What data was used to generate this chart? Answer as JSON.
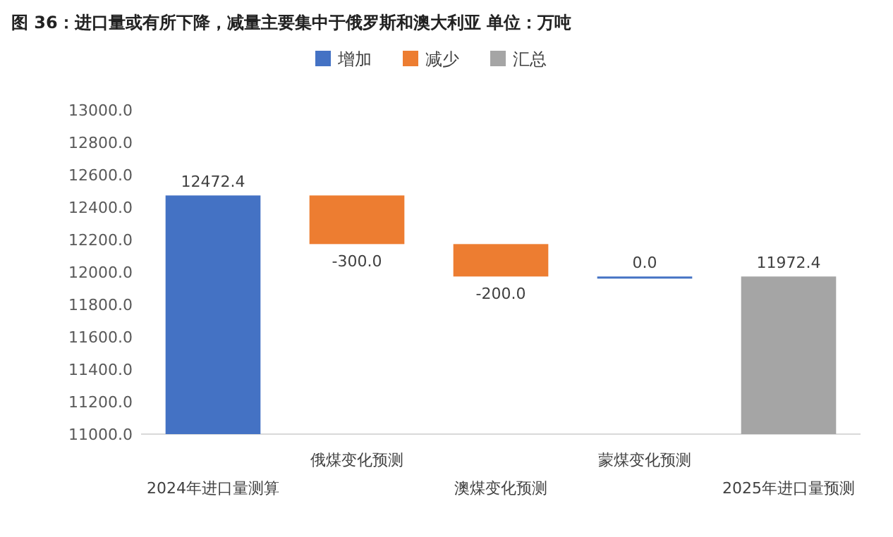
{
  "chart_data": {
    "type": "bar",
    "title": "图 36：进口量或有所下降，减量主要集中于俄罗斯和澳大利亚 单位：万吨",
    "categories": [
      "2024年进口量测算",
      "俄煤变化预测",
      "澳煤变化预测",
      "蒙煤变化预测",
      "2025年进口量预测"
    ],
    "series": [
      {
        "name": "增加",
        "color": "#4472c4",
        "values": [
          12472.4,
          null,
          null,
          0.0,
          null
        ],
        "base": [
          null,
          null,
          null,
          11972.4,
          null
        ],
        "value_labels": [
          "12472.4",
          null,
          null,
          "0.0",
          null
        ]
      },
      {
        "name": "减少",
        "color": "#ed7d31",
        "values": [
          null,
          -300.0,
          -200.0,
          null,
          null
        ],
        "base": [
          null,
          12472.4,
          12172.4,
          null,
          null
        ],
        "value_labels": [
          null,
          "-300.0",
          "-200.0",
          null,
          null
        ]
      },
      {
        "name": "汇总",
        "color": "#a5a5a5",
        "values": [
          null,
          null,
          null,
          null,
          11972.4
        ],
        "value_labels": [
          null,
          null,
          null,
          null,
          "11972.4"
        ]
      }
    ],
    "ylim": [
      11000,
      13000
    ],
    "yticks": [
      {
        "value": 11000,
        "label": "11000.0"
      },
      {
        "value": 11200,
        "label": "11200.0"
      },
      {
        "value": 11400,
        "label": "11400.0"
      },
      {
        "value": 11600,
        "label": "11600.0"
      },
      {
        "value": 11800,
        "label": "11800.0"
      },
      {
        "value": 12000,
        "label": "12000.0"
      },
      {
        "value": 12200,
        "label": "12200.0"
      },
      {
        "value": 12400,
        "label": "12400.0"
      },
      {
        "value": 12600,
        "label": "12600.0"
      },
      {
        "value": 12800,
        "label": "12800.0"
      },
      {
        "value": 13000,
        "label": "13000.0"
      }
    ],
    "grid": false,
    "legend": "top"
  }
}
